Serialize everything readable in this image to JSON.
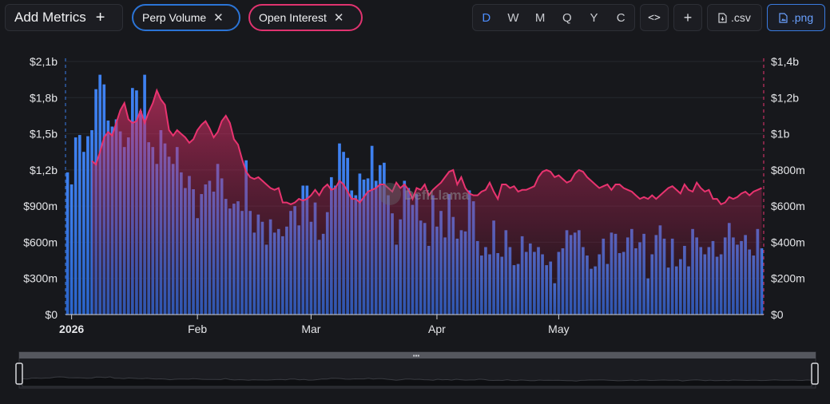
{
  "toolbar": {
    "add_metrics": "Add Metrics",
    "add_icon": "+",
    "pills": [
      {
        "label": "Perp Volume",
        "color": "#2b74d6"
      },
      {
        "label": "Open Interest",
        "color": "#e0336f"
      }
    ],
    "periods": [
      "D",
      "W",
      "M",
      "Q",
      "Y",
      "C"
    ],
    "active_period": "D",
    "embed_label": "<>",
    "plus_label": "+",
    "csv_label": ".csv",
    "png_label": ".png"
  },
  "watermark": "DefiLlama",
  "colors": {
    "volume": "#3a7be8",
    "open_interest": "#e8336f",
    "background": "#17181c"
  },
  "chart_data": {
    "type": "bar+area",
    "x_start": "2025-12-31",
    "x_end": "2026-05-20",
    "x_ticks": [
      "2026",
      "Feb",
      "Mar",
      "Apr",
      "May"
    ],
    "y_left": {
      "ticks": [
        "$0",
        "$300m",
        "$600m",
        "$900m",
        "$1,2b",
        "$1,5b",
        "$1,8b",
        "$2,1b"
      ],
      "range": [
        0,
        2100
      ]
    },
    "y_right": {
      "ticks": [
        "$0",
        "$200m",
        "$400m",
        "$600m",
        "$800m",
        "$1b",
        "$1,2b",
        "$1,4b"
      ],
      "range": [
        0,
        1400
      ]
    },
    "grid": true,
    "series": [
      {
        "name": "Perp Volume",
        "type": "bar",
        "axis": "left",
        "unit": "$m",
        "values": [
          1180,
          1080,
          1470,
          1490,
          1350,
          1480,
          1530,
          1870,
          1990,
          1910,
          1610,
          1560,
          1620,
          1520,
          1390,
          1470,
          1880,
          1860,
          1690,
          1990,
          1430,
          1390,
          1250,
          1530,
          1420,
          1310,
          1250,
          1390,
          1180,
          1050,
          1150,
          1040,
          800,
          1000,
          1080,
          1110,
          1020,
          1250,
          1130,
          960,
          880,
          920,
          940,
          860,
          1280,
          860,
          680,
          830,
          770,
          580,
          790,
          680,
          710,
          650,
          730,
          860,
          900,
          740,
          1070,
          1070,
          770,
          930,
          620,
          670,
          850,
          1140,
          1070,
          1420,
          1350,
          1300,
          1030,
          990,
          1170,
          1120,
          1130,
          1400,
          1110,
          1240,
          1260,
          990,
          840,
          580,
          790,
          1110,
          1050,
          910,
          1000,
          780,
          760,
          570,
          990,
          730,
          860,
          640,
          1000,
          810,
          630,
          700,
          690,
          1030,
          940,
          610,
          490,
          560,
          500,
          780,
          510,
          480,
          700,
          560,
          410,
          420,
          650,
          520,
          590,
          520,
          560,
          500,
          410,
          440,
          260,
          520,
          550,
          700,
          660,
          680,
          700,
          560,
          490,
          380,
          400,
          500,
          630,
          420,
          680,
          670,
          510,
          520,
          640,
          710,
          550,
          600,
          670,
          300,
          500,
          660,
          740,
          630,
          390,
          630,
          400,
          460,
          570,
          400,
          710,
          640,
          560,
          500,
          560,
          610,
          480,
          500,
          640,
          760,
          640,
          580,
          610,
          660,
          540,
          490,
          710,
          550
        ],
        "color": "#3a7be8"
      },
      {
        "name": "Open Interest",
        "type": "area",
        "axis": "right",
        "unit": "$m",
        "start_index": 6,
        "values": [
          850,
          830,
          900,
          980,
          1010,
          990,
          1060,
          1130,
          1170,
          1080,
          1060,
          1070,
          1130,
          1060,
          1120,
          1170,
          1240,
          1190,
          1160,
          1020,
          990,
          1020,
          1000,
          980,
          950,
          970,
          1020,
          1050,
          1070,
          1030,
          980,
          1010,
          1070,
          1100,
          1060,
          970,
          940,
          860,
          790,
          760,
          750,
          760,
          740,
          720,
          700,
          690,
          700,
          620,
          620,
          610,
          620,
          640,
          630,
          640,
          660,
          690,
          660,
          700,
          720,
          690,
          700,
          740,
          720,
          680,
          640,
          640,
          620,
          650,
          680,
          690,
          700,
          720,
          720,
          700,
          680,
          730,
          700,
          720,
          690,
          640,
          700,
          690,
          720,
          660,
          690,
          710,
          730,
          760,
          790,
          800,
          720,
          760,
          700,
          670,
          660,
          660,
          680,
          690,
          730,
          680,
          640,
          720,
          720,
          700,
          710,
          680,
          690,
          690,
          700,
          710,
          760,
          790,
          800,
          790,
          760,
          770,
          750,
          730,
          740,
          780,
          800,
          790,
          760,
          740,
          720,
          700,
          710,
          720,
          690,
          720,
          720,
          700,
          690,
          680,
          660,
          640,
          650,
          640,
          660,
          640,
          660,
          680,
          700,
          710,
          690,
          670,
          720,
          690,
          680,
          730,
          700,
          680,
          690,
          640,
          640,
          610,
          620,
          650,
          640,
          650,
          670,
          680,
          660,
          680,
          690,
          700,
          720,
          740,
          750,
          760,
          780,
          790,
          800,
          810,
          800,
          760,
          810,
          730,
          720,
          740,
          720,
          750,
          760
        ],
        "color": "#e8336f"
      }
    ]
  }
}
